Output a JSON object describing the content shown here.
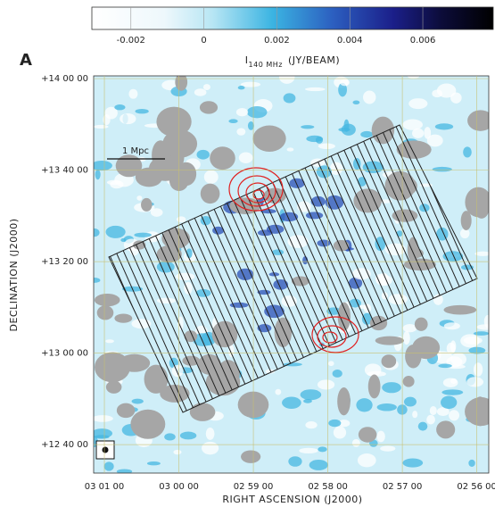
{
  "chart_data": {
    "type": "image",
    "panel_label": "A",
    "colorbar": {
      "label": "I",
      "label_subscript": "140 MHz",
      "label_unit": "(JY/BEAM)",
      "lim": [
        -0.00307,
        0.00793
      ],
      "ticks": [
        -0.002,
        0,
        0.002,
        0.004,
        0.006
      ]
    },
    "x_label": "RIGHT ASCENSION (J2000)",
    "y_label": "DECLINATION (J2000)",
    "xlim": [
      45.286,
      43.96
    ],
    "xticks": [
      {
        "value": 45.25,
        "label": "03 01 00"
      },
      {
        "value": 45.0,
        "label": "03 00 00"
      },
      {
        "value": 44.75,
        "label": "02 59 00"
      },
      {
        "value": 44.5,
        "label": "02 58 00"
      },
      {
        "value": 44.25,
        "label": "02 57 00"
      },
      {
        "value": 44.0,
        "label": "02 56 00"
      }
    ],
    "ylim": [
      12.563,
      14.01
    ],
    "yticks": [
      {
        "value": 12.6667,
        "label": "+12 40 00"
      },
      {
        "value": 13.0,
        "label": "+13 00 00"
      },
      {
        "value": 13.3333,
        "label": "+13 20 00"
      },
      {
        "value": 13.6667,
        "label": "+13 40 00"
      },
      {
        "value": 14.0,
        "label": "+14 00 00"
      }
    ],
    "scale_bar": "1 Mpc"
  }
}
